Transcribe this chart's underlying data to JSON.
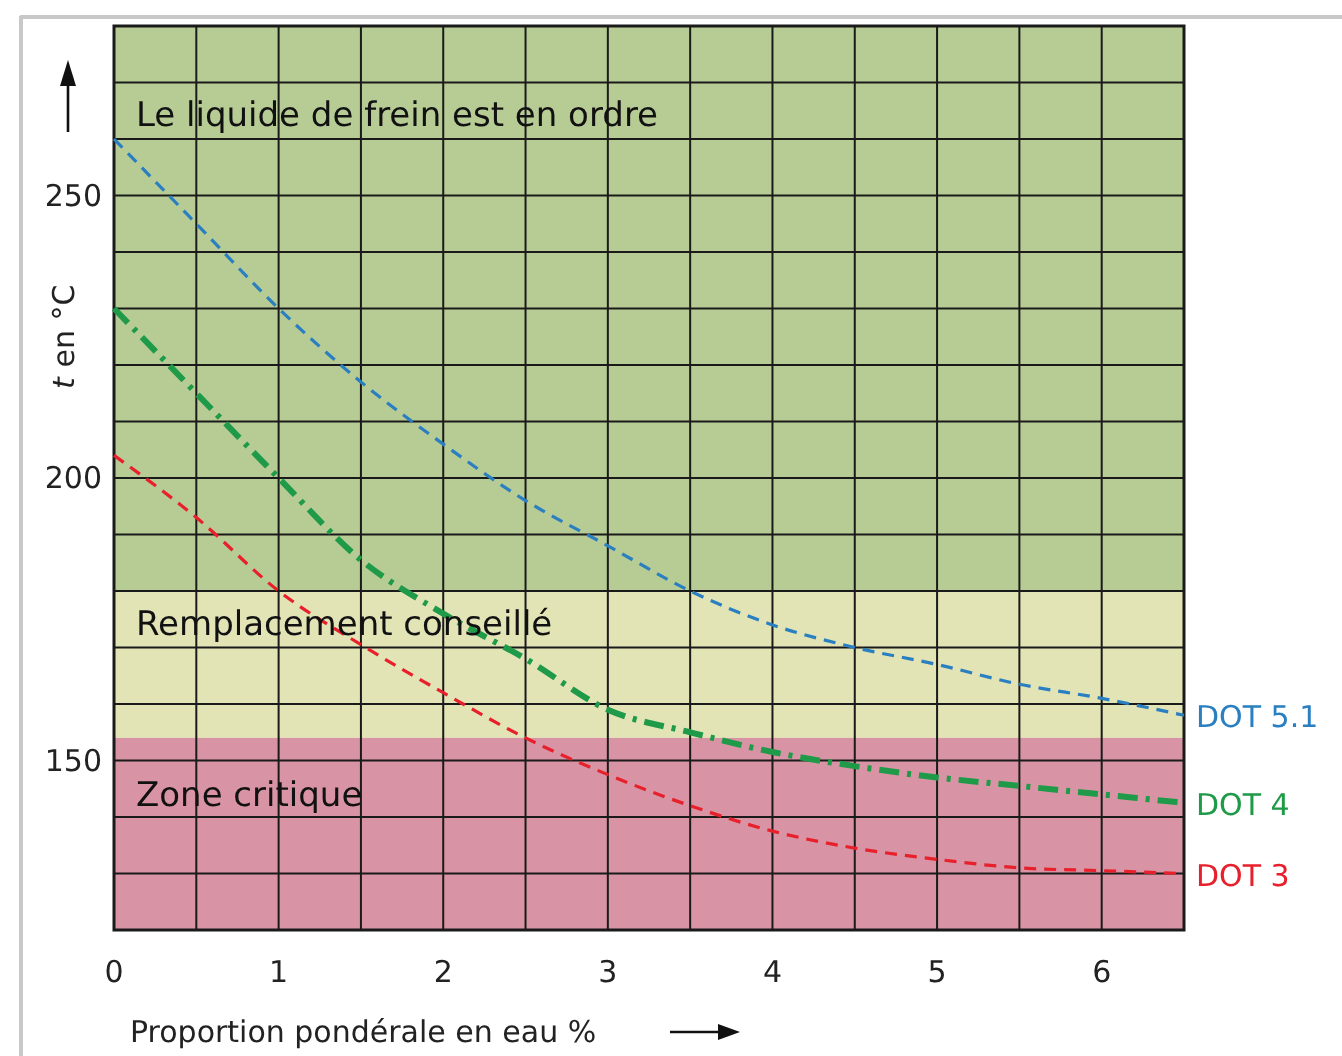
{
  "chart_data": {
    "type": "line",
    "xlabel": "Proportion pondérale en eau %",
    "ylabel": "t en °C",
    "xlim": [
      0,
      6.5
    ],
    "ylim": [
      120,
      280
    ],
    "xticks": [
      0,
      {
        "value": 0.5,
        "label": null
      },
      1,
      {
        "value": 1.5,
        "label": null
      },
      2,
      {
        "value": 2.5,
        "label": null
      },
      3,
      {
        "value": 3.5,
        "label": null
      },
      4,
      {
        "value": 4.5,
        "label": null
      },
      5,
      {
        "value": 5.5,
        "label": null
      },
      6
    ],
    "yticks": [
      {
        "value": 120,
        "label": null
      },
      {
        "value": 130,
        "label": null
      },
      {
        "value": 140,
        "label": null
      },
      150,
      {
        "value": 160,
        "label": null
      },
      {
        "value": 170,
        "label": null
      },
      {
        "value": 180,
        "label": null
      },
      {
        "value": 190,
        "label": null
      },
      200,
      {
        "value": 210,
        "label": null
      },
      {
        "value": 220,
        "label": null
      },
      {
        "value": 230,
        "label": null
      },
      {
        "value": 240,
        "label": null
      },
      250,
      {
        "value": 260,
        "label": null
      },
      {
        "value": 270,
        "label": null
      }
    ],
    "grid": true,
    "marker": "none",
    "x": [
      0,
      0.5,
      1,
      1.5,
      2,
      2.5,
      3,
      3.5,
      4,
      4.5,
      5,
      5.5,
      6,
      6.5
    ],
    "series": [
      {
        "name": "DOT 5.1",
        "color": "#2a7fc1",
        "line_style": "dashed",
        "values": [
          260,
          245,
          230,
          217,
          206,
          196,
          188,
          180,
          174,
          170,
          167,
          163.5,
          161,
          158
        ]
      },
      {
        "name": "DOT 4",
        "color": "#1f9a48",
        "line_style": "dashdot",
        "values": [
          230,
          215,
          200,
          185.5,
          176,
          168,
          159,
          155,
          151.5,
          149,
          147,
          145.5,
          144,
          142.5
        ]
      },
      {
        "name": "DOT 3",
        "color": "#e8202c",
        "line_style": "dashed",
        "values": [
          204,
          193,
          180,
          170.5,
          162,
          154,
          147.5,
          142,
          137.5,
          134.5,
          132.5,
          131,
          130.5,
          130
        ]
      }
    ],
    "bands": [
      {
        "axis": "y",
        "from": 180,
        "to": 280,
        "label": "Le liquide de frein est en ordre",
        "color": "#b7cc95"
      },
      {
        "axis": "y",
        "from": 154,
        "to": 180,
        "label": "Remplacement conseillé",
        "color": "#e2e4b6"
      },
      {
        "axis": "y",
        "from": 120,
        "to": 154,
        "label": "Zone critique",
        "color": "#d894a4"
      }
    ]
  }
}
